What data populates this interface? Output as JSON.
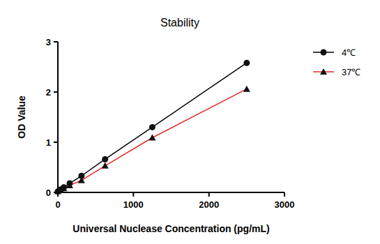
{
  "chart_data": {
    "type": "line",
    "title": "Stability",
    "x_label": "Universal Nuclease Concentration (pg/mL)",
    "y_label": "OD Value",
    "x": [
      0,
      39.06,
      78.125,
      156.25,
      312.5,
      625,
      1250,
      2500
    ],
    "series": [
      {
        "name": "4℃",
        "color": "#000000",
        "marker": "circle",
        "values": [
          0.02,
          0.06,
          0.1,
          0.18,
          0.33,
          0.66,
          1.3,
          2.58
        ]
      },
      {
        "name": "37℃",
        "color": "#e8282b",
        "marker": "triangle",
        "values": [
          0.02,
          0.05,
          0.08,
          0.14,
          0.24,
          0.53,
          1.09,
          2.06
        ]
      }
    ],
    "xlim": [
      0,
      3000
    ],
    "xticks": [
      0,
      1000,
      2000,
      3000
    ],
    "ylim": [
      0,
      3
    ],
    "yticks": [
      0,
      1,
      2,
      3
    ],
    "grid": false,
    "legend": "right"
  }
}
